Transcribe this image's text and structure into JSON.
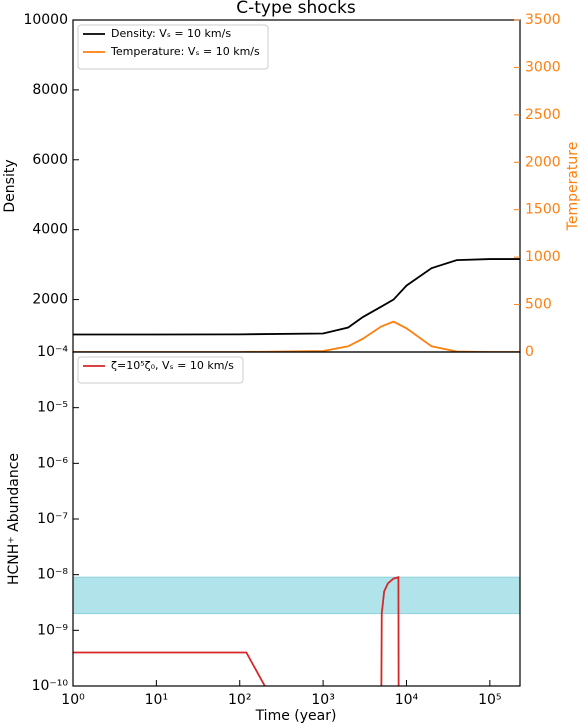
{
  "chart_data": [
    {
      "type": "line",
      "title": "C-type shocks",
      "ylabel": "Density",
      "y2label": "Temperature",
      "xscale": "log",
      "xlim": [
        1,
        230000
      ],
      "ylim": [
        500,
        10000
      ],
      "yticks": [
        2000,
        4000,
        6000,
        8000,
        10000
      ],
      "y2lim": [
        0,
        3500
      ],
      "y2ticks": [
        0,
        500,
        1000,
        1500,
        2000,
        2500,
        3000,
        3500
      ],
      "y2color": "#ff7f0e",
      "legend": "upper left",
      "x": [
        1,
        10,
        100,
        1000,
        2000,
        3000,
        5000,
        7000,
        10000,
        20000,
        40000,
        100000,
        230000
      ],
      "series": [
        {
          "name": "Density: Vₛ = 10 km/s",
          "color": "#000000",
          "values": [
            1000,
            1000,
            1005,
            1030,
            1200,
            1500,
            1800,
            2000,
            2400,
            2900,
            3130,
            3160,
            3160
          ]
        },
        {
          "name": "Temperature: Vₛ = 10 km/s",
          "color": "#ff7f0e",
          "axis": "y2",
          "values": [
            0,
            0,
            0,
            10,
            60,
            140,
            270,
            320,
            250,
            60,
            5,
            0,
            0
          ]
        }
      ]
    },
    {
      "type": "line",
      "ylabel": "HCNH⁺ Abundance",
      "xlabel": "Time (year)",
      "xscale": "log",
      "xlim": [
        1,
        230000
      ],
      "xticks": [
        {
          "value": 1,
          "label": "10⁰"
        },
        {
          "value": 10,
          "label": "10¹"
        },
        {
          "value": 100,
          "label": "10²"
        },
        {
          "value": 1000,
          "label": "10³"
        },
        {
          "value": 10000,
          "label": "10⁴"
        },
        {
          "value": 100000,
          "label": "10⁵"
        }
      ],
      "yscale": "log",
      "ylim": [
        1e-10,
        0.0001
      ],
      "yticks": [
        {
          "value": 1e-10,
          "label": "10⁻¹⁰"
        },
        {
          "value": 1e-09,
          "label": "10⁻⁹"
        },
        {
          "value": 1e-08,
          "label": "10⁻⁸"
        },
        {
          "value": 1e-07,
          "label": "10⁻⁷"
        },
        {
          "value": 1e-06,
          "label": "10⁻⁶"
        },
        {
          "value": 1e-05,
          "label": "10⁻⁵"
        },
        {
          "value": 0.0001,
          "label": "10⁻⁴"
        }
      ],
      "band": [
        2e-09,
        9e-09
      ],
      "band_color": "#b0e4ea",
      "legend": "upper left",
      "x": [
        1,
        120,
        200,
        null,
        5000,
        5050,
        5400,
        6000,
        7000,
        8000,
        8050
      ],
      "series": [
        {
          "name": "ζ=10⁵ζ₀, Vₛ = 10 km/s",
          "color": "#d62728",
          "values": [
            4e-10,
            4e-10,
            1e-10,
            null,
            1e-10,
            2e-09,
            5e-09,
            7e-09,
            8.5e-09,
            9e-09,
            1e-10
          ]
        }
      ]
    }
  ]
}
